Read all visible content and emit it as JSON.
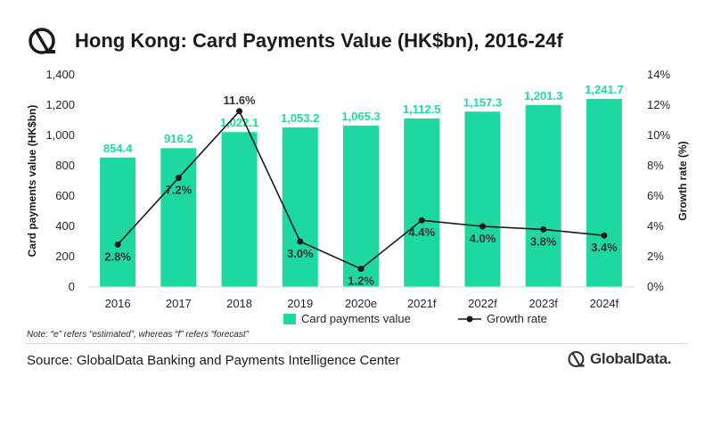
{
  "header": {
    "title": "Hong Kong: Card Payments Value (HK$bn), 2016-24f",
    "logo_icon": "globaldata-logo-icon"
  },
  "note": "Note: “e” refers “estimated”, whereas “f” refers “forecast”",
  "source": "Source: GlobalData Banking and Payments Intelligence Center",
  "brand": {
    "name": "GlobalData.",
    "icon": "globaldata-logo-icon"
  },
  "colors": {
    "bar": "#1ed8a2",
    "bar_label": "#1ed8a2",
    "line": "#1a1a1a",
    "axis_text": "#262626"
  },
  "chart_data": {
    "type": "bar",
    "categories": [
      "2016",
      "2017",
      "2018",
      "2019",
      "2020e",
      "2021f",
      "2022f",
      "2023f",
      "2024f"
    ],
    "series": [
      {
        "name": "Card payments value",
        "kind": "bar",
        "axis": "left",
        "values": [
          854.4,
          916.2,
          1022.1,
          1053.2,
          1065.3,
          1112.5,
          1157.3,
          1201.3,
          1241.7
        ],
        "labels": [
          "854.4",
          "916.2",
          "1,022.1",
          "1,053.2",
          "1,065.3",
          "1,112.5",
          "1,157.3",
          "1,201.3",
          "1,241.7"
        ]
      },
      {
        "name": "Growth rate",
        "kind": "line",
        "axis": "right",
        "values": [
          2.8,
          7.2,
          11.6,
          3.0,
          1.2,
          4.4,
          4.0,
          3.8,
          3.4
        ],
        "labels": [
          "2.8%",
          "7.2%",
          "11.6%",
          "3.0%",
          "1.2%",
          "4.4%",
          "4.0%",
          "3.8%",
          "3.4%"
        ]
      }
    ],
    "ylabel": "Card payments value (HK$bn)",
    "y2label": "Growth rate (%)",
    "ylim": [
      0,
      1400
    ],
    "y2lim": [
      0,
      14
    ],
    "yticks": [
      "0",
      "200",
      "400",
      "600",
      "800",
      "1,000",
      "1,200",
      "1,400"
    ],
    "y2ticks": [
      "0%",
      "2%",
      "4%",
      "6%",
      "8%",
      "10%",
      "12%",
      "14%"
    ],
    "grid": false,
    "legend": "bottom"
  }
}
